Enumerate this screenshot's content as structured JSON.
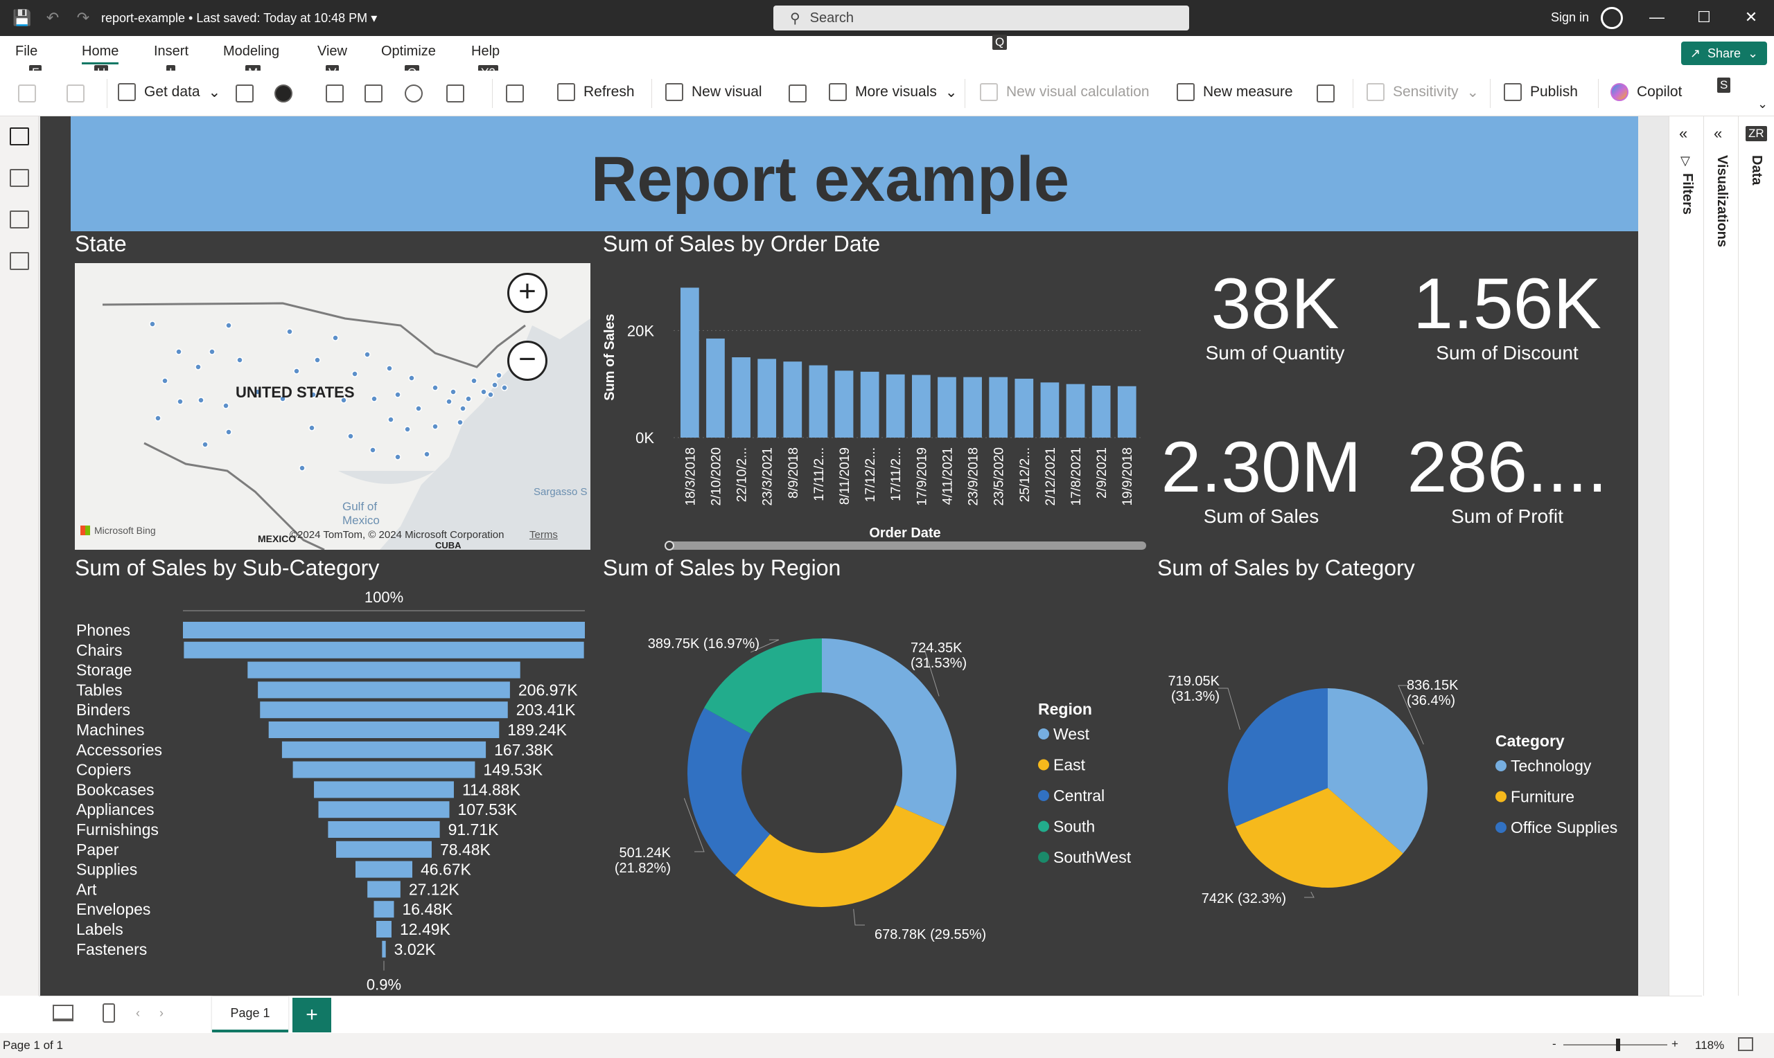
{
  "titlebar": {
    "doc_title": "report-example • Last saved: Today at 10:48 PM",
    "search_placeholder": "Search",
    "signin": "Sign in",
    "search_keytip": "Q"
  },
  "menu": {
    "tabs": [
      {
        "label": "File",
        "keytip": "F"
      },
      {
        "label": "Home",
        "keytip": "H"
      },
      {
        "label": "Insert",
        "keytip": "I"
      },
      {
        "label": "Modeling",
        "keytip": "M"
      },
      {
        "label": "View",
        "keytip": "V"
      },
      {
        "label": "Optimize",
        "keytip": "O"
      },
      {
        "label": "Help",
        "keytip": "Y2"
      }
    ],
    "share_label": "Share"
  },
  "ribbon": {
    "get_data": "Get data",
    "refresh": "Refresh",
    "new_visual": "New visual",
    "more_visuals": "More visuals",
    "new_visual_calc": "New visual calculation",
    "new_measure": "New measure",
    "sensitivity": "Sensitivity",
    "publish": "Publish",
    "copilot": "Copilot",
    "copilot_keytip": "S"
  },
  "panes": {
    "filters": "Filters",
    "visualizations": "Visualizations",
    "data": "Data",
    "data_keytip": "ZR"
  },
  "report": {
    "title": "Report example",
    "header_color": "#76aee0",
    "background_color": "#3c3c3c"
  },
  "map": {
    "title": "State",
    "country_label": "UNITED STATES",
    "gulf_label": "Gulf of\nMexico",
    "sargasso_label": "Sargasso S",
    "mexico_label": "MEXICO",
    "cuba_label": "CUBA",
    "attribution": "©2024 TomTom, © 2024 Microsoft Corporation",
    "terms": "Terms",
    "bing": "Microsoft Bing"
  },
  "cards": [
    {
      "value": "38K",
      "label": "Sum of Quantity"
    },
    {
      "value": "1.56K",
      "label": "Sum of Discount"
    },
    {
      "value": "2.30M",
      "label": "Sum of Sales"
    },
    {
      "value": "286....",
      "label": "Sum of Profit"
    }
  ],
  "bottom": {
    "page_tab": "Page 1",
    "add_page": "+",
    "status": "Page 1 of 1",
    "zoom": "118%"
  },
  "chart_data": [
    {
      "type": "bar",
      "title": "Sum of Sales by Order Date",
      "xlabel": "Order Date",
      "ylabel": "Sum of Sales",
      "y_ticks": [
        "0K",
        "20K"
      ],
      "ylim": [
        0,
        30000
      ],
      "categories": [
        "18/3/2018",
        "2/10/2020",
        "22/10/2...",
        "23/3/2021",
        "8/9/2018",
        "17/11/2...",
        "8/11/2019",
        "17/12/2...",
        "17/11/2...",
        "17/9/2019",
        "4/11/2021",
        "23/9/2018",
        "23/5/2020",
        "25/12/2...",
        "2/12/2021",
        "17/8/2021",
        "2/9/2021",
        "19/9/2018"
      ],
      "values": [
        28000,
        18500,
        15000,
        14700,
        14200,
        13500,
        12500,
        12300,
        11800,
        11700,
        11300,
        11300,
        11300,
        11000,
        10300,
        10000,
        9700,
        9600
      ],
      "color": "#76aee0"
    },
    {
      "type": "bar",
      "orientation": "funnel",
      "title": "Sum of Sales by Sub-Category",
      "top_label": "100%",
      "bottom_label": "0.9%",
      "categories": [
        "Phones",
        "Chairs",
        "Storage",
        "Tables",
        "Binders",
        "Machines",
        "Accessories",
        "Copiers",
        "Bookcases",
        "Appliances",
        "Furnishings",
        "Paper",
        "Supplies",
        "Art",
        "Envelopes",
        "Labels",
        "Fasteners"
      ],
      "values": [
        330010,
        328450,
        223840,
        206970,
        203410,
        189240,
        167380,
        149530,
        114880,
        107530,
        91710,
        78480,
        46670,
        27120,
        16480,
        12490,
        3020
      ],
      "data_labels": [
        "",
        "",
        "",
        "206.97K",
        "203.41K",
        "189.24K",
        "167.38K",
        "149.53K",
        "114.88K",
        "107.53K",
        "91.71K",
        "78.48K",
        "46.67K",
        "27.12K",
        "16.48K",
        "12.49K",
        "3.02K"
      ],
      "color": "#76aee0"
    },
    {
      "type": "pie",
      "variant": "donut",
      "title": "Sum of Sales by Region",
      "legend_title": "Region",
      "legend_position": "right",
      "series": [
        {
          "name": "West",
          "value": 724350,
          "label": "724.35K\n(31.53%)",
          "color": "#76aee0"
        },
        {
          "name": "East",
          "value": 678780,
          "label": "678.78K (29.55%)",
          "color": "#f6b91c"
        },
        {
          "name": "Central",
          "value": 501240,
          "label": "501.24K\n(21.82%)",
          "color": "#3171c2"
        },
        {
          "name": "South",
          "value": 389750,
          "label": "389.75K (16.97%)",
          "color": "#22ac8c"
        },
        {
          "name": "SouthWest",
          "value": 0,
          "label": "",
          "color": "#1a8a6a"
        }
      ]
    },
    {
      "type": "pie",
      "title": "Sum of Sales by Category",
      "legend_title": "Category",
      "legend_position": "right",
      "series": [
        {
          "name": "Technology",
          "value": 836150,
          "label": "836.15K\n(36.4%)",
          "color": "#76aee0"
        },
        {
          "name": "Furniture",
          "value": 742000,
          "label": "742K (32.3%)",
          "color": "#f6b91c"
        },
        {
          "name": "Office Supplies",
          "value": 719050,
          "label": "719.05K\n(31.3%)",
          "color": "#3171c2"
        }
      ]
    }
  ]
}
